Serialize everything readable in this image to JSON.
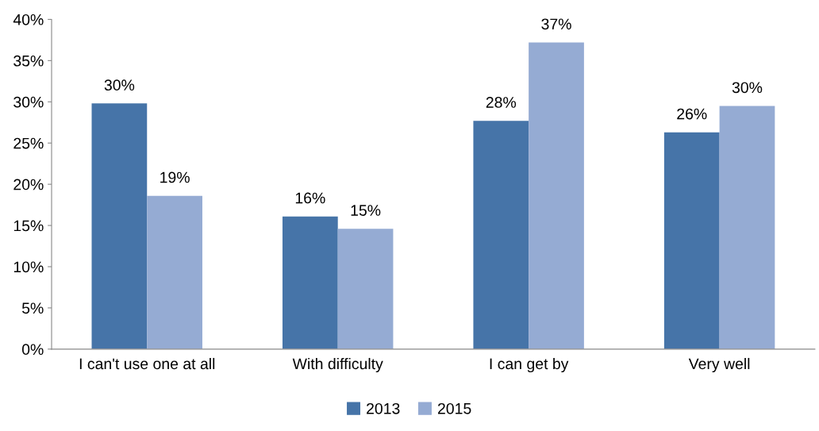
{
  "chart_data": {
    "type": "bar",
    "categories": [
      "I can't use one at all",
      "With difficulty",
      "I can get by",
      "Very well"
    ],
    "series": [
      {
        "name": "2013",
        "color": "#4674a8",
        "values": [
          29.8,
          16.1,
          27.7,
          26.3
        ],
        "value_labels": [
          "30%",
          "16%",
          "28%",
          "26%"
        ]
      },
      {
        "name": "2015",
        "color": "#95abd3",
        "values": [
          18.6,
          14.6,
          37.2,
          29.5
        ],
        "value_labels": [
          "19%",
          "15%",
          "37%",
          "30%"
        ]
      }
    ],
    "ylim": [
      0,
      40
    ],
    "yticks": [
      {
        "value": 0,
        "label": "0%"
      },
      {
        "value": 5,
        "label": "5%"
      },
      {
        "value": 10,
        "label": "10%"
      },
      {
        "value": 15,
        "label": "15%"
      },
      {
        "value": 20,
        "label": "20%"
      },
      {
        "value": 25,
        "label": "25%"
      },
      {
        "value": 30,
        "label": "30%"
      },
      {
        "value": 35,
        "label": "35%"
      },
      {
        "value": 40,
        "label": "40%"
      }
    ],
    "grid": false,
    "legend": "bottom"
  }
}
